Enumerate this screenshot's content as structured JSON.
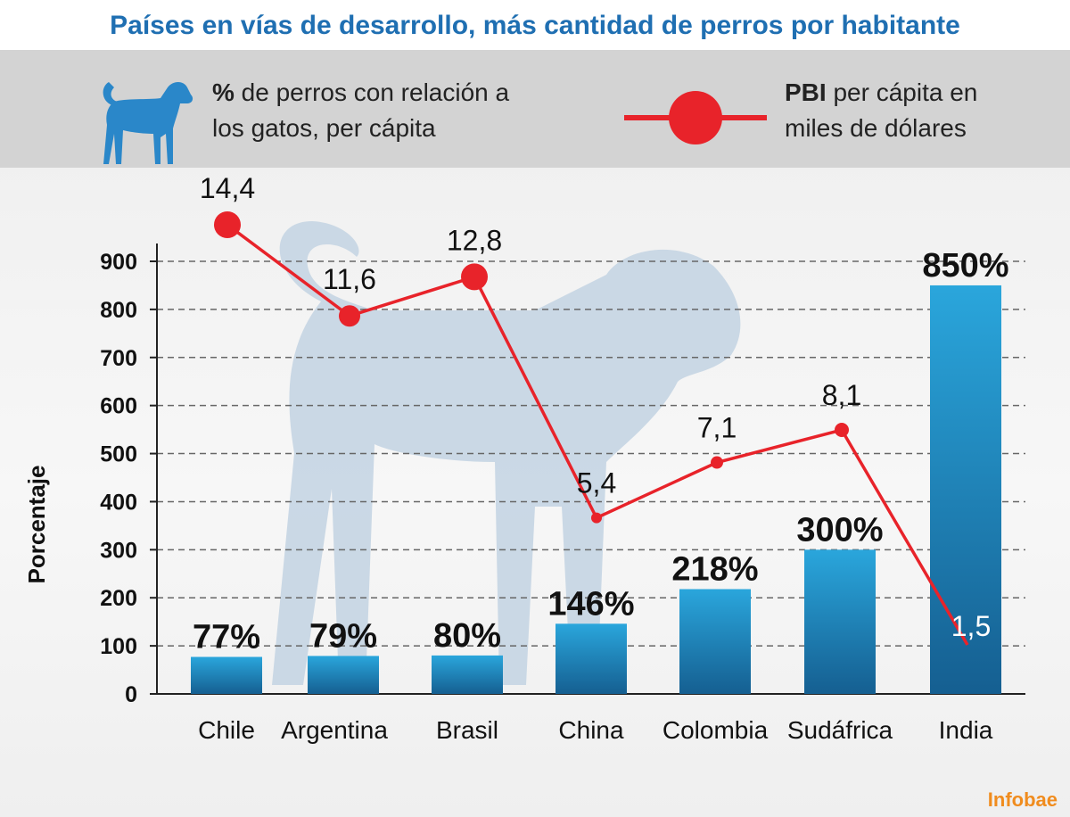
{
  "title": "Países en vías de desarrollo, más cantidad de  perros  por habitante",
  "legend": {
    "dogs_bold": "%",
    "dogs_line1": " de perros con relación a",
    "dogs_line2": "los gatos, per cápita",
    "gdp_bold": "PBI",
    "gdp_line1": " per cápita en",
    "gdp_line2": "miles de dólares",
    "dog_icon": "dog-icon",
    "line_icon": "red-line-marker-icon"
  },
  "brand": "Infobae",
  "colors": {
    "title": "#1f6fb2",
    "bar_top": "#2aa6dc",
    "bar_bottom": "#155f91",
    "line": "#e8232a",
    "silhouette": "#c5d5e3",
    "legend_bg": "#d3d3d3"
  },
  "chart_data": {
    "type": "bar+line",
    "categories": [
      "Chile",
      "Argentina",
      "Brasil",
      "China",
      "Colombia",
      "Sudáfrica",
      "India"
    ],
    "series": [
      {
        "values": [
          77,
          79,
          80,
          146,
          218,
          300,
          850
        ],
        "labels": [
          "77%",
          "79%",
          "80%",
          "146%",
          "218%",
          "300%",
          "850%"
        ]
      },
      {
        "values": [
          14.4,
          11.6,
          12.8,
          5.4,
          7.1,
          8.1,
          1.5
        ],
        "labels": [
          "14,4",
          "11,6",
          "12,8",
          "5,4",
          "7,1",
          "8,1",
          "1,5"
        ]
      }
    ],
    "ylabel": "Porcentaje",
    "yticks": [
      0,
      100,
      200,
      300,
      400,
      500,
      600,
      700,
      800,
      900
    ],
    "ylim": [
      0,
      900
    ],
    "grid": true
  }
}
